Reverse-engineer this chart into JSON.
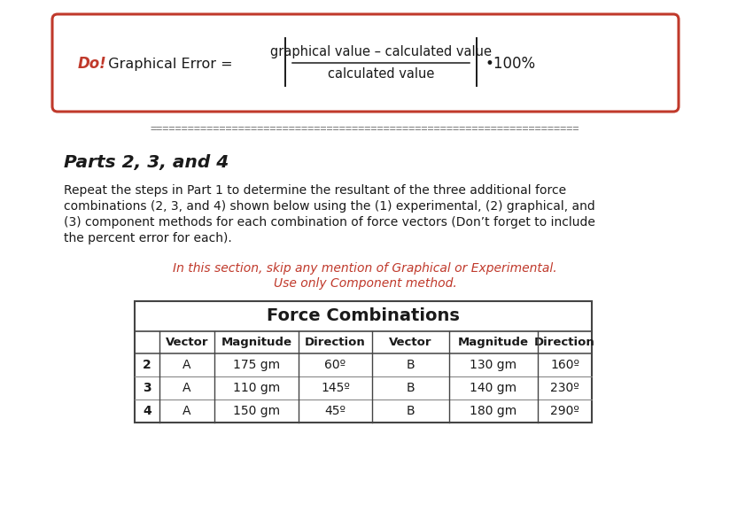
{
  "box_title_do": "Do!",
  "box_label": "  Graphical Error =",
  "formula_numerator": "graphical value – calculated value",
  "formula_denominator": "calculated value",
  "formula_suffix": "•100%",
  "parts_heading": "Parts 2, 3, and 4",
  "body_text_lines": [
    "Repeat the steps in Part 1 to determine the resultant of the three additional force",
    "combinations (2, 3, and 4) shown below using the (1) experimental, (2) graphical, and",
    "(3) component methods for each combination of force vectors (Don’t forget to include",
    "the percent error for each)."
  ],
  "note_line1": "In this section, skip any mention of Graphical or Experimental.",
  "note_line2": "Use only Component method.",
  "table_title": "Force Combinations",
  "col_headers": [
    "",
    "Vector",
    "Magnitude",
    "Direction",
    "Vector",
    "Magnitude",
    "Direction"
  ],
  "table_rows": [
    [
      "2",
      "A",
      "175 gm",
      "60º",
      "B",
      "130 gm",
      "160º"
    ],
    [
      "3",
      "A",
      "110 gm",
      "145º",
      "B",
      "140 gm",
      "230º"
    ],
    [
      "4",
      "A",
      "150 gm",
      "45º",
      "B",
      "180 gm",
      "290º"
    ]
  ],
  "box_color": "#c0392b",
  "note_color": "#c0392b",
  "bg_color": "#ffffff",
  "text_color": "#1a1a1a",
  "sep_color": "#777777",
  "table_border_color": "#444444",
  "table_line_color": "#888888"
}
